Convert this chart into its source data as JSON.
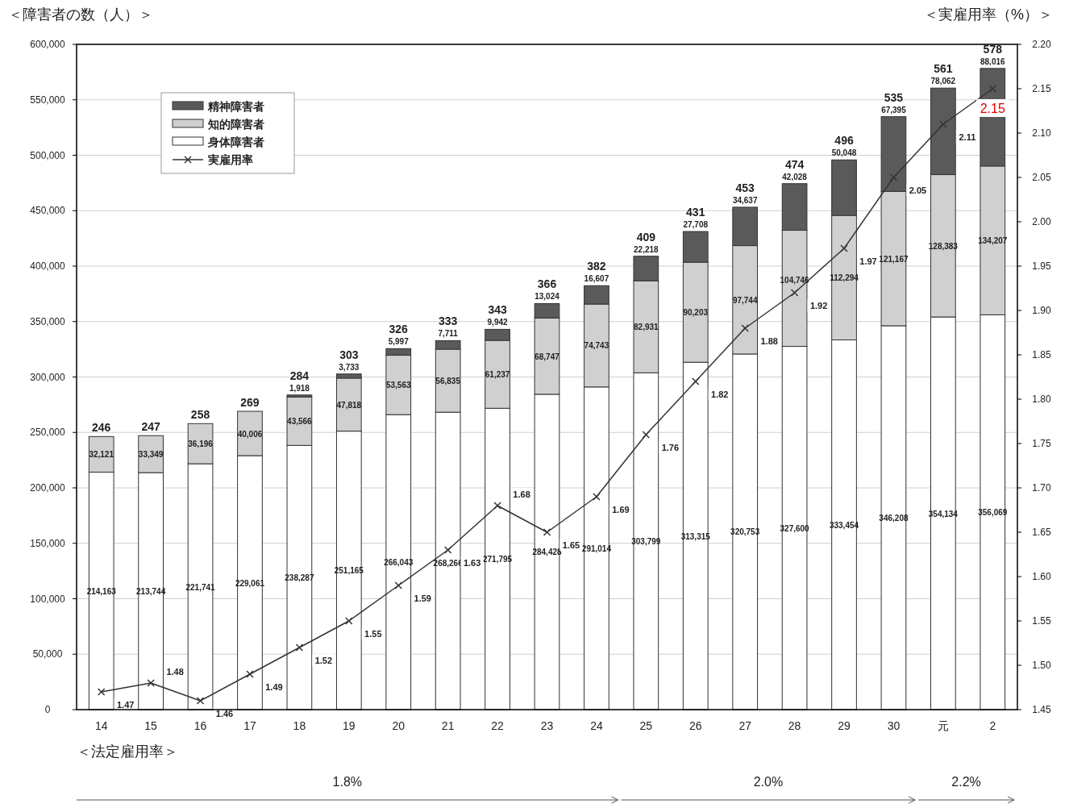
{
  "chart_data": {
    "type": "bar",
    "stacked": true,
    "ylabel": "＜障害者の数（人）＞",
    "y2label": "＜実雇用率（%）＞",
    "categories": [
      "14",
      "15",
      "16",
      "17",
      "18",
      "19",
      "20",
      "21",
      "22",
      "23",
      "24",
      "25",
      "26",
      "27",
      "28",
      "29",
      "30",
      "元",
      "2"
    ],
    "series": [
      {
        "name": "身体障害者",
        "type": "bar",
        "color": "#ffffff",
        "values": [
          214163,
          213744,
          221741,
          229061,
          238287,
          251165,
          266043,
          268266,
          271795,
          284428,
          291014,
          303799,
          313315,
          320753,
          327600,
          333454,
          346208,
          354134,
          356069
        ],
        "value_labels": [
          "214,163",
          "213,744",
          "221,741",
          "229,061",
          "238,287",
          "251,165",
          "266,043",
          "268,266",
          "271,795",
          "284,428",
          "291,014",
          "303,799",
          "313,315",
          "320,753",
          "327,600",
          "333,454",
          "346,208",
          "354,134",
          "356,069"
        ]
      },
      {
        "name": "知的障害者",
        "type": "bar",
        "color": "#d0d0d0",
        "values": [
          32121,
          33349,
          36196,
          40006,
          43566,
          47818,
          53563,
          56835,
          61237,
          68747,
          74743,
          82931,
          90203,
          97744,
          104746,
          112294,
          121167,
          128383,
          134207
        ],
        "value_labels": [
          "32,121",
          "33,349",
          "36,196",
          "40,006",
          "43,566",
          "47,818",
          "53,563",
          "56,835",
          "61,237",
          "68,747",
          "74,743",
          "82,931",
          "90,203",
          "97,744",
          "104,746",
          "112,294",
          "121,167",
          "128,383",
          "134,207"
        ]
      },
      {
        "name": "精神障害者",
        "type": "bar",
        "color": "#5a5a5a",
        "values": [
          null,
          null,
          null,
          null,
          1918,
          3733,
          5997,
          7711,
          9942,
          13024,
          16607,
          22218,
          27708,
          34637,
          42028,
          50048,
          67395,
          78062,
          88016
        ],
        "value_labels": [
          null,
          null,
          null,
          null,
          "1,918",
          "3,733",
          "5,997",
          "7,711",
          "9,942",
          "13,024",
          "16,607",
          "22,218",
          "27,708",
          "34,637",
          "42,028",
          "50,048",
          "67,395",
          "78,062",
          "88,016"
        ]
      },
      {
        "name": "実雇用率",
        "type": "line",
        "axis": "y2",
        "color": "#333333",
        "marker": "cross",
        "values": [
          1.47,
          1.48,
          1.46,
          1.49,
          1.52,
          1.55,
          1.59,
          1.63,
          1.68,
          1.65,
          1.69,
          1.76,
          1.82,
          1.88,
          1.92,
          1.97,
          2.05,
          2.11,
          2.15
        ],
        "value_labels": [
          "1.47",
          "1.48",
          "1.46",
          "1.49",
          "1.52",
          "1.55",
          "1.59",
          "1.63",
          "1.68",
          "1.65",
          "1.69",
          "1.76",
          "1.82",
          "1.88",
          "1.92",
          "1.97",
          "2.05",
          "2.11",
          "2.15"
        ]
      }
    ],
    "ylim": [
      0,
      600000
    ],
    "yticks": [
      0,
      {
        "value": 50000,
        "label": "50,000"
      },
      {
        "value": 100000,
        "label": "100,000"
      },
      {
        "value": 150000,
        "label": "150,000"
      },
      {
        "value": 200000,
        "label": "200,000"
      },
      {
        "value": 250000,
        "label": "250,000"
      },
      {
        "value": 300000,
        "label": "300,000"
      },
      {
        "value": 350000,
        "label": "350,000"
      },
      {
        "value": 400000,
        "label": "400,000"
      },
      {
        "value": 450000,
        "label": "450,000"
      },
      {
        "value": 500000,
        "label": "500,000"
      },
      {
        "value": 550000,
        "label": "550,000"
      },
      {
        "value": 600000,
        "label": "600,000"
      }
    ],
    "y2lim": [
      1.45,
      2.2
    ],
    "y2ticks": [
      1.45,
      {
        "value": 1.5,
        "label": "1.50"
      },
      1.55,
      {
        "value": 1.6,
        "label": "1.60"
      },
      1.65,
      {
        "value": 1.7,
        "label": "1.70"
      },
      1.75,
      {
        "value": 1.8,
        "label": "1.80"
      },
      1.85,
      {
        "value": 1.9,
        "label": "1.90"
      },
      1.95,
      {
        "value": 2.0,
        "label": "2.00"
      },
      2.05,
      {
        "value": 2.1,
        "label": "2.10"
      },
      2.15,
      {
        "value": 2.2,
        "label": "2.20"
      }
    ],
    "grid": "y",
    "legend": "top left",
    "annotations": [
      "＜法定雇用率＞",
      "1.8%",
      "2.0%",
      "2.2%",
      {
        "text": "246",
        "x": "14",
        "y": 246284
      },
      {
        "text": "247",
        "x": "15",
        "y": 247093
      },
      {
        "text": "258",
        "x": "16",
        "y": 257937
      },
      {
        "text": "269",
        "x": "17",
        "y": 269067
      },
      {
        "text": "284",
        "x": "18",
        "y": 283771
      },
      {
        "text": "303",
        "x": "19",
        "y": 302716
      },
      {
        "text": "326",
        "x": "20",
        "y": 325603
      },
      {
        "text": "333",
        "x": "21",
        "y": 332812
      },
      {
        "text": "343",
        "x": "22",
        "y": 342974
      },
      {
        "text": "366",
        "x": "23",
        "y": 366199
      },
      {
        "text": "382",
        "x": "24",
        "y": 382364
      },
      {
        "text": "409",
        "x": "25",
        "y": 408948
      },
      {
        "text": "431",
        "x": "26",
        "y": 431226
      },
      {
        "text": "453",
        "x": "27",
        "y": 453134
      },
      {
        "text": "474",
        "x": "28",
        "y": 474374
      },
      {
        "text": "496",
        "x": "29",
        "y": 495796
      },
      {
        "text": "535",
        "x": "30",
        "y": 534770
      },
      {
        "text": "561",
        "x": "元",
        "y": 560579
      },
      {
        "text": "578",
        "x": "2",
        "y": 578292
      }
    ]
  }
}
